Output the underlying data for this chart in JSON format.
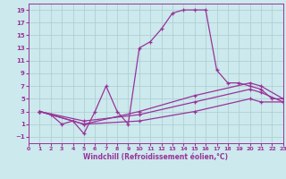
{
  "xlabel": "Windchill (Refroidissement éolien,°C)",
  "background_color": "#cce9ed",
  "grid_color": "#aacccc",
  "line_color": "#993399",
  "xmin": 0,
  "xmax": 23,
  "ymin": -2,
  "ymax": 20,
  "yticks": [
    -1,
    1,
    3,
    5,
    7,
    9,
    11,
    13,
    15,
    17,
    19
  ],
  "xticks": [
    0,
    1,
    2,
    3,
    4,
    5,
    6,
    7,
    8,
    9,
    10,
    11,
    12,
    13,
    14,
    15,
    16,
    17,
    18,
    19,
    20,
    21,
    22,
    23
  ],
  "line1_x": [
    1,
    2,
    3,
    4,
    5,
    6,
    7,
    8,
    9,
    10,
    11,
    12,
    13,
    14,
    15,
    16,
    17,
    18,
    19,
    20,
    21,
    22,
    23
  ],
  "line1_y": [
    3,
    2.5,
    1,
    1.5,
    -0.5,
    3,
    7,
    3,
    1,
    13,
    14,
    16,
    18.5,
    19,
    19,
    19,
    9.5,
    7.5,
    7.5,
    7,
    6.5,
    5,
    5
  ],
  "line2_x": [
    1,
    5,
    10,
    15,
    20,
    21,
    23
  ],
  "line2_y": [
    3,
    1,
    3,
    5.5,
    7.5,
    7,
    5
  ],
  "line3_x": [
    1,
    5,
    10,
    15,
    20,
    21,
    23
  ],
  "line3_y": [
    3,
    1.5,
    2.5,
    4.5,
    6.5,
    6,
    4.5
  ],
  "line4_x": [
    1,
    5,
    10,
    15,
    20,
    21,
    23
  ],
  "line4_y": [
    3,
    1,
    1.5,
    3,
    5,
    4.5,
    4.5
  ]
}
